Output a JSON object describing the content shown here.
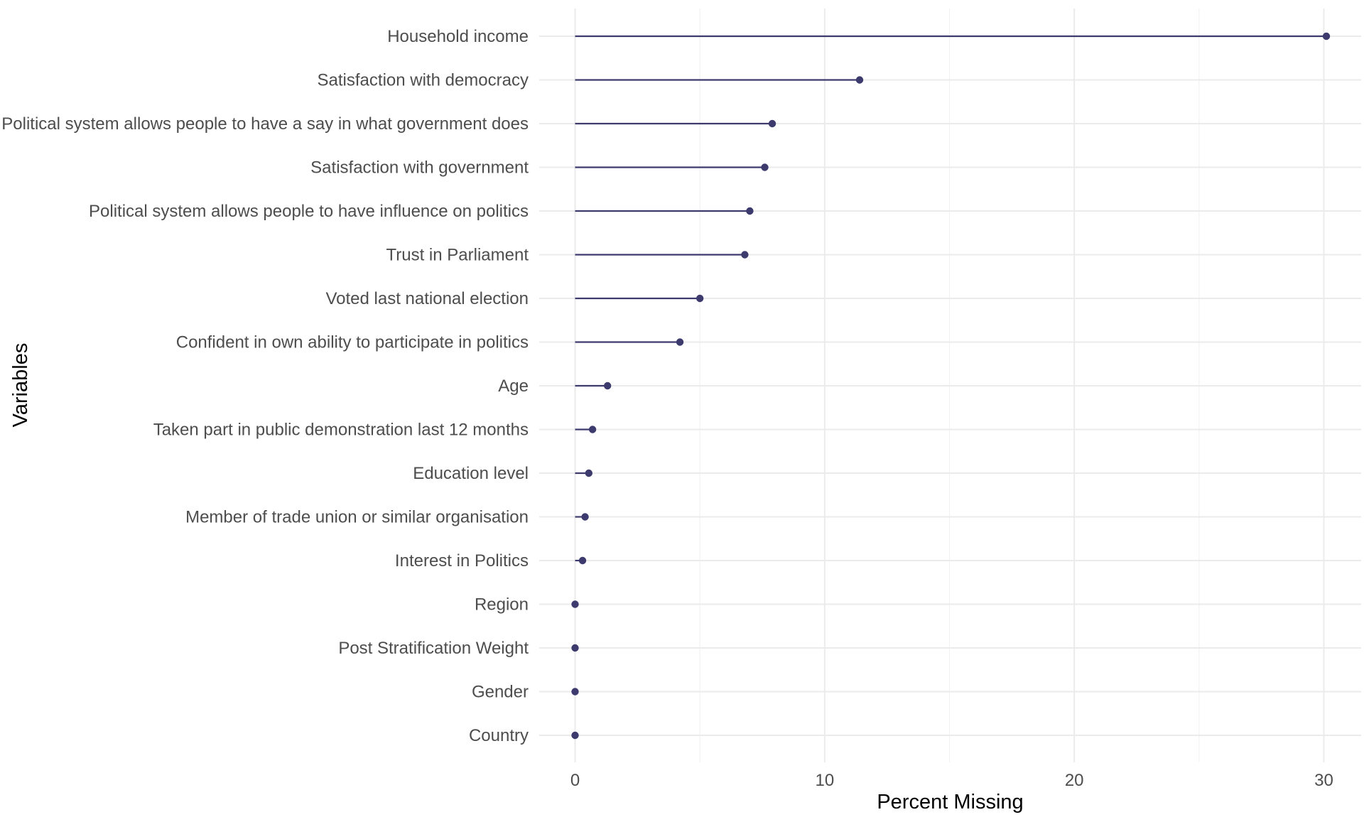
{
  "chart_data": {
    "type": "lollipop",
    "title": "",
    "xlabel": "Percent Missing",
    "ylabel": "Variables",
    "xlim": [
      -1.5,
      31.5
    ],
    "x_ticks": [
      0,
      10,
      20,
      30
    ],
    "grid": true,
    "legend": "none",
    "colors": {
      "series": "#3d3b6e",
      "grid": "#ebebeb"
    },
    "categories": [
      "Household income",
      "Satisfaction with democracy",
      "Political system allows people to have a say in what government does",
      "Satisfaction with government",
      "Political system allows people to have influence on politics",
      "Trust in Parliament",
      "Voted last national election",
      "Confident in own ability to participate in politics",
      "Age",
      "Taken part in public demonstration last 12 months",
      "Education level",
      "Member of trade union or similar organisation",
      "Interest in Politics",
      "Region",
      "Post Stratification Weight",
      "Gender",
      "Country"
    ],
    "values": [
      30.1,
      11.4,
      7.9,
      7.6,
      7.0,
      6.8,
      5.0,
      4.2,
      1.3,
      0.7,
      0.55,
      0.4,
      0.3,
      0,
      0,
      0,
      0
    ]
  }
}
